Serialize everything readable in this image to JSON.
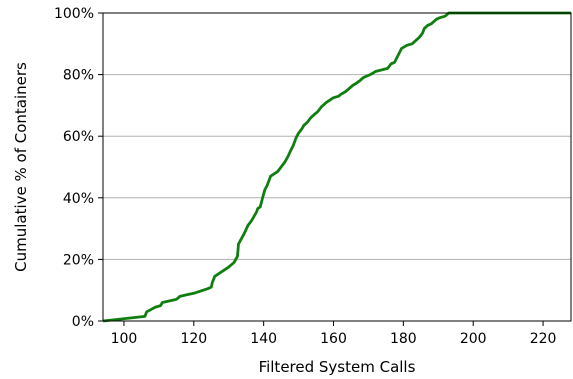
{
  "chart_data": {
    "type": "line",
    "title": "",
    "xlabel": "Filtered System Calls",
    "ylabel": "Cumulative % of Containers",
    "xlim": [
      94,
      228
    ],
    "ylim": [
      0,
      100
    ],
    "xticks": [
      100,
      120,
      140,
      160,
      180,
      200,
      220
    ],
    "yticks": [
      0,
      20,
      40,
      60,
      80,
      100
    ],
    "ytick_labels": [
      "0%",
      "20%",
      "40%",
      "60%",
      "80%",
      "100%"
    ],
    "grid": "horizontal",
    "legend": "none",
    "colors": {
      "line": "#107f10",
      "grid": "#b0b0b0",
      "axis": "#000000"
    },
    "series": [
      {
        "x": [
          94,
          106,
          106.5,
          109,
          110.5,
          111,
          115,
          115.5,
          116,
          118,
          120,
          124,
          125,
          125.3,
          126,
          130,
          131.5,
          132.5,
          132.8,
          133.5,
          134.5,
          135.5,
          136.5,
          138,
          138.3,
          139,
          139.7,
          140.3,
          141,
          142,
          144,
          145,
          146,
          147,
          147.8,
          148.5,
          149.3,
          150,
          151,
          151.5,
          152.5,
          153.5,
          154.5,
          155.5,
          156.5,
          158,
          160,
          161.5,
          162,
          163.5,
          164.5,
          165.5,
          166.3,
          167.5,
          168.5,
          169.5,
          170.5,
          171.3,
          172,
          175.5,
          176.5,
          177.5,
          179.5,
          181,
          182.5,
          183.5,
          184.5,
          185.5,
          186,
          187,
          188,
          189,
          189.5,
          190.5,
          191.5,
          192,
          193,
          194,
          203,
          204,
          206,
          228
        ],
        "y": [
          0,
          1.5,
          3,
          4.5,
          5,
          6,
          7,
          7.5,
          8,
          8.5,
          9,
          10.5,
          11,
          12.5,
          14.5,
          17.5,
          19,
          21,
          25,
          26.5,
          28.5,
          31,
          32.5,
          35.5,
          36.5,
          37,
          40,
          42.5,
          44,
          47,
          48.5,
          50,
          51.5,
          53.5,
          55.5,
          57,
          59.5,
          61,
          62.5,
          63.5,
          64.5,
          66,
          67,
          68,
          69.5,
          71,
          72.5,
          73,
          73.5,
          74.5,
          75.5,
          76.5,
          77,
          78,
          79,
          79.5,
          80,
          80.5,
          81,
          82,
          83.5,
          84,
          88.5,
          89.5,
          90,
          91,
          92,
          93.5,
          95,
          96,
          96.5,
          97.5,
          98,
          98.5,
          98.8,
          99,
          100,
          100,
          100,
          100,
          100,
          100
        ]
      }
    ]
  }
}
